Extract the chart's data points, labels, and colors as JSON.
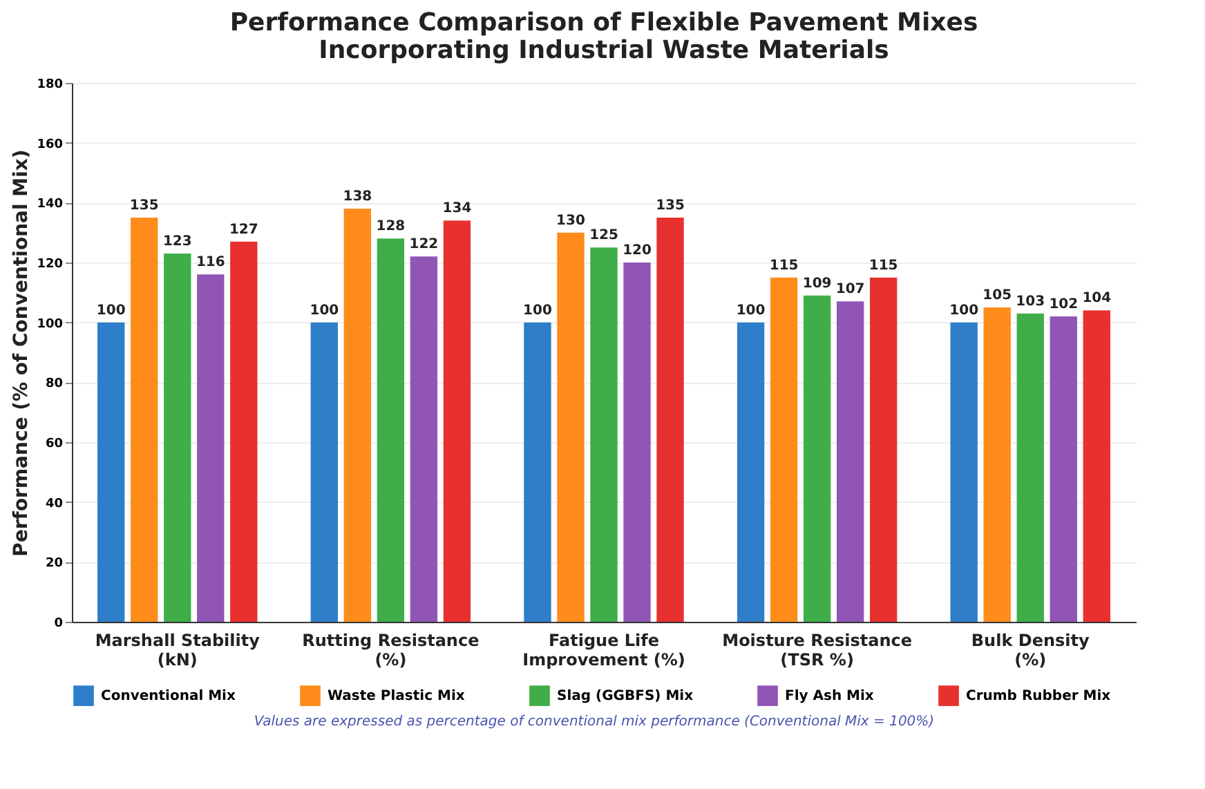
{
  "chart_data": {
    "type": "bar",
    "title": "Performance Comparison of Flexible Pavement Mixes\nIncorporating Industrial Waste Materials",
    "ylabel": "Performance (% of Conventional Mix)",
    "categories": [
      "Marshall Stability (kN)",
      "Rutting Resistance (%)",
      "Fatigue Life Improvement (%)",
      "Moisture Resistance (TSR %)",
      "Bulk Density (%)"
    ],
    "series": [
      {
        "name": "Conventional Mix",
        "color": "#2e7ec9",
        "values": [
          100,
          100,
          100,
          100,
          100
        ]
      },
      {
        "name": "Waste Plastic Mix",
        "color": "#ff8c1a",
        "values": [
          135,
          138,
          130,
          115,
          105
        ]
      },
      {
        "name": "Slag (GGBFS) Mix",
        "color": "#3fae49",
        "values": [
          123,
          128,
          125,
          109,
          103
        ]
      },
      {
        "name": "Fly Ash Mix",
        "color": "#9155b5",
        "values": [
          116,
          122,
          120,
          107,
          102
        ]
      },
      {
        "name": "Crumb Rubber Mix",
        "color": "#e8312f",
        "values": [
          127,
          134,
          135,
          115,
          104
        ]
      }
    ],
    "ylim": [
      0,
      180
    ],
    "yticks": [
      0,
      20,
      40,
      60,
      80,
      100,
      120,
      140,
      160,
      180
    ],
    "grid": "y",
    "legend": "bottom",
    "data_labels": true,
    "annotations": [
      "Values are expressed as percentage of conventional mix performance (Conventional Mix = 100%)"
    ]
  }
}
